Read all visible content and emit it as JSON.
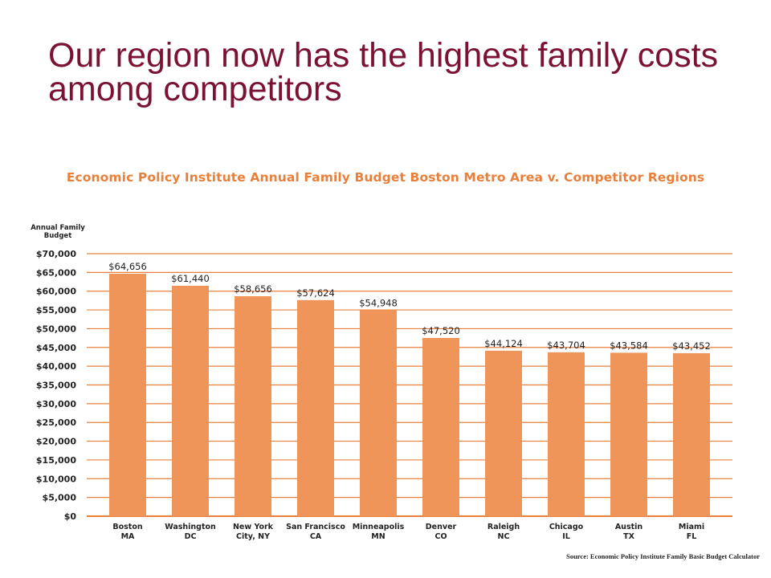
{
  "slide": {
    "title": "Our region now has the highest family costs among competitors"
  },
  "chart_data": {
    "type": "bar",
    "title": "Economic Policy Institute Annual Family Budget Boston Metro Area v. Competitor Regions",
    "ylabel_lines": [
      "Annual Family",
      "Budget"
    ],
    "ylim": [
      0,
      70000
    ],
    "ytick_step": 5000,
    "yticks": [
      "$0",
      "$5,000",
      "$10,000",
      "$15,000",
      "$20,000",
      "$25,000",
      "$30,000",
      "$35,000",
      "$40,000",
      "$45,000",
      "$50,000",
      "$55,000",
      "$60,000",
      "$65,000",
      "$70,000"
    ],
    "categories": [
      [
        "Boston",
        "MA"
      ],
      [
        "Washington",
        "DC"
      ],
      [
        "New York",
        "City, NY"
      ],
      [
        "San Francisco",
        "CA"
      ],
      [
        "Minneapolis",
        "MN"
      ],
      [
        "Denver",
        "CO"
      ],
      [
        "Raleigh",
        "NC"
      ],
      [
        "Chicago",
        "IL"
      ],
      [
        "Austin",
        "TX"
      ],
      [
        "Miami",
        "FL"
      ]
    ],
    "values": [
      64656,
      61440,
      58656,
      57624,
      54948,
      47520,
      44124,
      43704,
      43584,
      43452
    ],
    "value_labels": [
      "$64,656",
      "$61,440",
      "$58,656",
      "$57,624",
      "$54,948",
      "$47,520",
      "$44,124",
      "$43,704",
      "$43,584",
      "$43,452"
    ],
    "grid": true,
    "colors": {
      "bar": "#f0955a",
      "grid": "#e8803c",
      "title": "#e8803c",
      "slide_title": "#7b1232"
    },
    "source": "Source: Economic Policy Institute Family Basic Budget Calculator"
  }
}
